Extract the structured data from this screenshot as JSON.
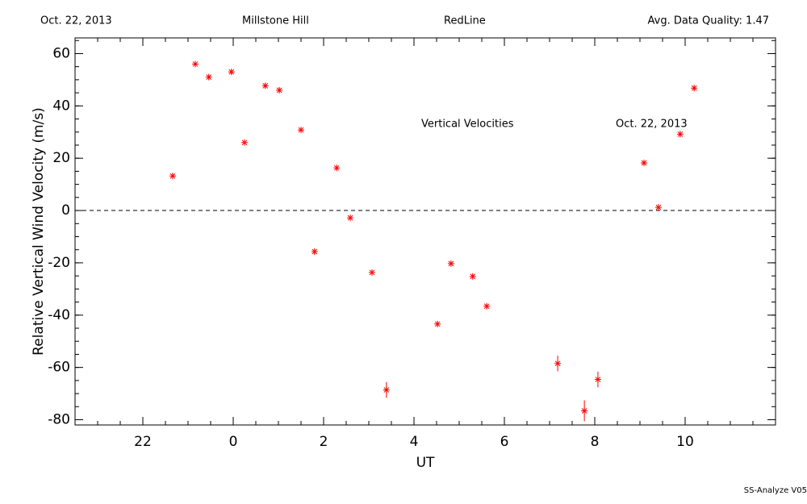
{
  "chart_data": {
    "type": "scatter",
    "header": [
      "Oct. 22, 2013",
      "Millstone Hill",
      "RedLine",
      "Avg. Data Quality: 1.47"
    ],
    "annotations": [
      "Vertical Velocities",
      "Oct. 22, 2013"
    ],
    "footer": "SS-Analyze V05",
    "xlabel": "UT",
    "ylabel": "Relative Vertical Wind Velocity (m/s)",
    "xlim": [
      -3.5,
      12
    ],
    "ylim": [
      -82,
      66
    ],
    "xticks": [
      {
        "value": -2,
        "label": "22"
      },
      0,
      2,
      4,
      6,
      8,
      10
    ],
    "yticks": [
      -80,
      -60,
      -40,
      -20,
      0,
      20,
      40,
      60
    ],
    "xminor_step": 0.5,
    "yminor_step": 5,
    "reference_line": 0,
    "series": [
      {
        "color": "#ff0000",
        "x": [
          -1.34,
          -0.84,
          -0.54,
          -0.04,
          0.25,
          0.71,
          1.02,
          1.5,
          1.8,
          2.29,
          2.59,
          3.07,
          3.39,
          4.52,
          4.82,
          5.3,
          5.61,
          7.18,
          7.77,
          8.07,
          9.09,
          9.41,
          9.89,
          10.2
        ],
        "values": [
          13.2,
          56,
          51,
          53,
          26,
          47.7,
          46,
          30.8,
          -15.7,
          16.3,
          -2.8,
          -23.7,
          -68.6,
          -43.4,
          -20.3,
          -25.2,
          -36.6,
          -58.5,
          -76.6,
          -64.6,
          18.2,
          1.2,
          29.2,
          46.8
        ],
        "errors": [
          1,
          1,
          1,
          1,
          1,
          1,
          1,
          1,
          1,
          1,
          1,
          1,
          3,
          1,
          1,
          1,
          1,
          3,
          4,
          3,
          1,
          1,
          1,
          1
        ]
      }
    ]
  }
}
